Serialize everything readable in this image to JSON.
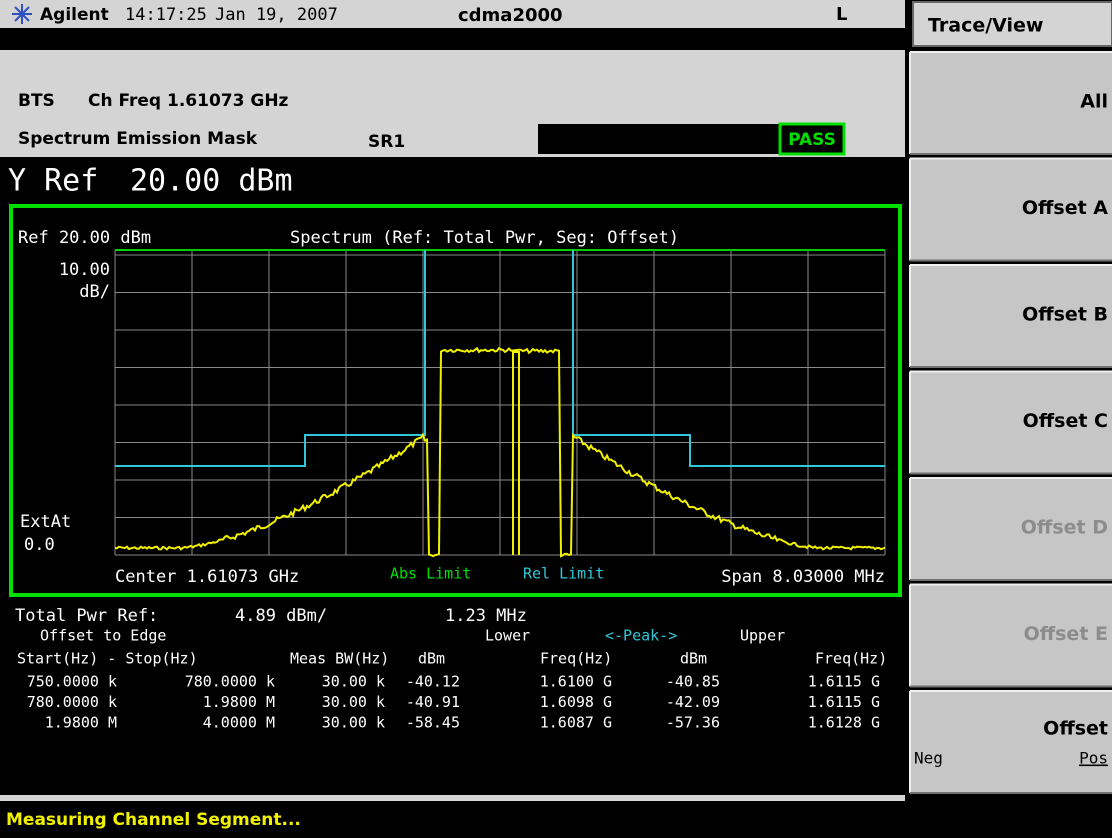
{
  "header": {
    "brand": "Agilent",
    "time": "14:17:25",
    "date": "Jan 19, 2007",
    "mode": "cdma2000",
    "indicator": "L"
  },
  "info": {
    "station": "BTS",
    "channel": "Ch Freq 1.61073 GHz",
    "measurement": "Spectrum Emission Mask",
    "rate": "SR1",
    "verdict": "PASS"
  },
  "y_ref": {
    "label": "Y Ref",
    "value": "20.00 dBm"
  },
  "graph": {
    "ref": "Ref 20.00 dBm",
    "title": "Spectrum (Ref: Total Pwr, Seg: Offset)",
    "scale_value": "10.00",
    "scale_unit": "dB/",
    "ext_label": "ExtAt",
    "ext_value": "0.0",
    "center": "Center 1.61073 GHz",
    "abs_limit": "Abs Limit",
    "rel_limit": "Rel Limit",
    "span": "Span 8.03000 MHz"
  },
  "results": {
    "total_label": "Total Pwr Ref:",
    "total_power": "4.89 dBm/",
    "bandwidth": "1.23 MHz",
    "group_headers": [
      "Offset to Edge",
      "Lower",
      "<-Peak->",
      "Upper"
    ],
    "columns": [
      "Start(Hz) - Stop(Hz)",
      "Meas BW(Hz)",
      "dBm",
      "Freq(Hz)",
      "dBm",
      "Freq(Hz)"
    ],
    "rows": [
      [
        "750.0000 k",
        "780.0000 k",
        "30.00 k",
        "-40.12",
        "1.6100 G",
        "-40.85",
        "1.6115 G"
      ],
      [
        "780.0000 k",
        "1.9800 M",
        "30.00 k",
        "-40.91",
        "1.6098 G",
        "-42.09",
        "1.6115 G"
      ],
      [
        "1.9800 M",
        "4.0000 M",
        "30.00 k",
        "-58.45",
        "1.6087 G",
        "-57.36",
        "1.6128 G"
      ]
    ]
  },
  "status_bar": "Measuring Channel Segment...",
  "softkeys": {
    "title": "Trace/View",
    "keys": [
      {
        "label": "All",
        "enabled": true
      },
      {
        "label": "Offset A",
        "enabled": true
      },
      {
        "label": "Offset B",
        "enabled": true
      },
      {
        "label": "Offset C",
        "enabled": true
      },
      {
        "label": "Offset D",
        "enabled": false
      },
      {
        "label": "Offset E",
        "enabled": false
      }
    ],
    "toggle": {
      "label": "Offset",
      "off": "Neg",
      "on": "Pos"
    }
  }
}
